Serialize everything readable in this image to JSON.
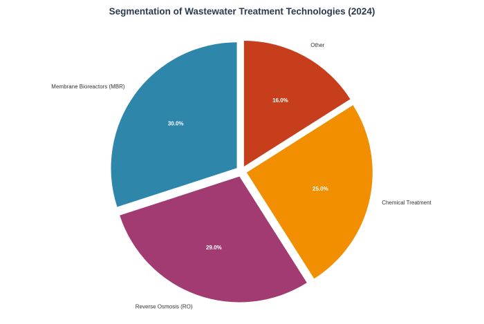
{
  "chart_data": {
    "type": "pie",
    "title": "Segmentation of Wastewater Treatment Technologies (2024)",
    "categories": [
      "Membrane Bioreactors (MBR)",
      "Reverse Osmosis (RO)",
      "Chemical Treatment",
      "Other"
    ],
    "values": [
      30.0,
      29.0,
      25.0,
      16.0
    ],
    "value_labels": [
      "30.0%",
      "29.0%",
      "25.0%",
      "16.0%"
    ],
    "colors": [
      "#2e86ab",
      "#a23b72",
      "#f18f01",
      "#c73e1d"
    ],
    "exploded": true,
    "start_angle_deg": 90,
    "direction": "counterclockwise",
    "legend": "none"
  }
}
